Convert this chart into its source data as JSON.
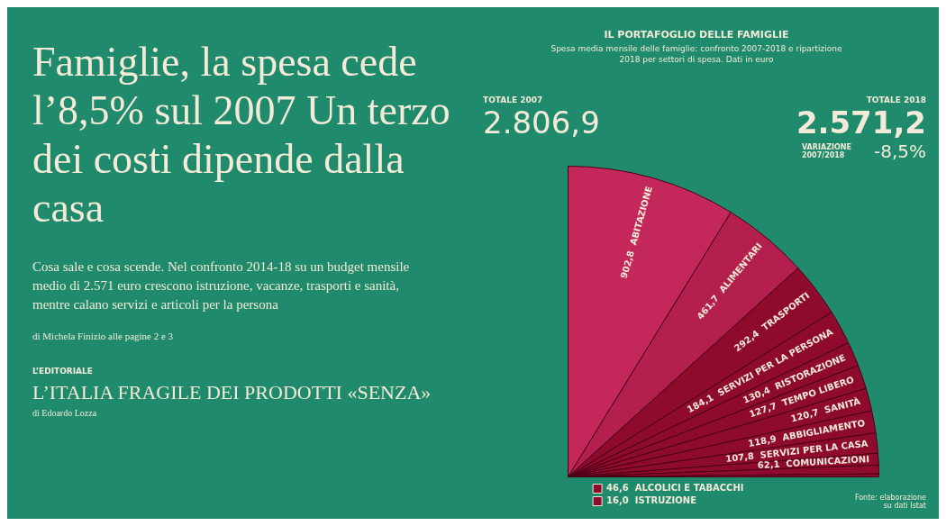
{
  "chart_data": {
    "type": "pie",
    "title": "IL PORTAFOGLIO DELLE FAMIGLIE",
    "subtitle": "Spesa media mensile delle famiglie: confronto 2007-2018 e ripartizione 2018 per settori di spesa. Dati in euro",
    "categories": [
      "ABITAZIONE",
      "ALIMENTARI",
      "TRASPORTI",
      "SERVIZI PER LA PERSONA",
      "RISTORAZIONE",
      "TEMPO LIBERO",
      "SANITÀ",
      "ABBIGLIAMENTO",
      "SERVIZI PER LA CASA",
      "COMUNICAZIONI",
      "ALCOLICI E TABACCHI",
      "ISTRUZIONE"
    ],
    "values": [
      902.8,
      461.7,
      292.4,
      184.1,
      130.4,
      127.7,
      120.7,
      118.9,
      107.8,
      62.1,
      46.6,
      16.0
    ],
    "value_labels": [
      "902,8",
      "461,7",
      "292,4",
      "184,1",
      "130,4",
      "127,7",
      "120,7",
      "118,9",
      "107,8",
      "62,1",
      "46,6",
      "16,0"
    ],
    "legend": "bottom",
    "colors": [
      "#c4285a",
      "#b4204e",
      "#8e0b2e",
      "#8e0b2e",
      "#8e0b2e",
      "#8e0b2e",
      "#8e0b2e",
      "#8e0b2e",
      "#8e0b2e",
      "#8e0b2e",
      "#8e0b2e",
      "#8e0b2e"
    ],
    "annotations": [
      "Famiglie, la spesa cede l’8,5% sul 2007 Un terzo dei costi dipende dalla casa",
      "Cosa sale e cosa scende.  Nel confronto 2014-18 su un budget mensile medio di 2.571 euro crescono istruzione, vacanze, trasporti e sanità, mentre calano servizi e articoli per la persona",
      "di Michela Finizio alle pagine 2 e 3",
      "L’EDITORIALE",
      "L’ITALIA FRAGILE DEI PRODOTTI «SENZA»",
      "di Edoardo Lozza",
      "TOTALE 2007",
      "2.806,9",
      "TOTALE 2018",
      "2.571,2",
      "VARIAZIONE 2007/2018",
      "-8,5%",
      "Fonte: elaborazione su dati Istat"
    ]
  }
}
